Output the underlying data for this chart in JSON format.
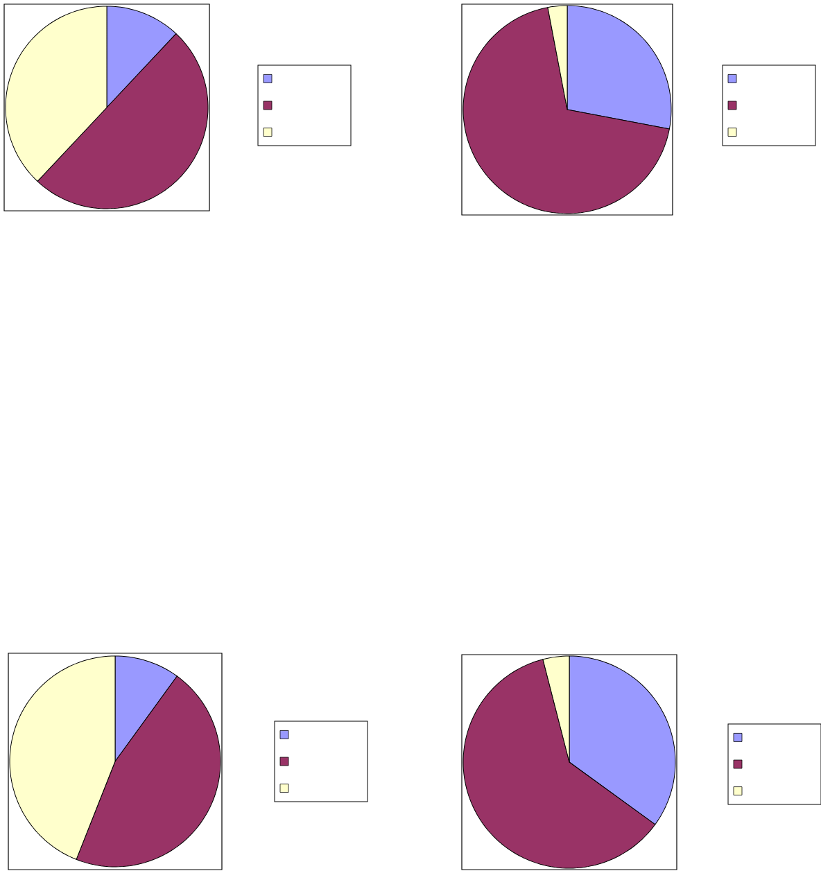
{
  "chart_data": [
    {
      "type": "pie",
      "categories": [
        null,
        null,
        null
      ],
      "values": [
        12,
        50,
        38
      ],
      "colors": [
        "#9999ff",
        "#993366",
        "#ffffcc"
      ]
    },
    {
      "type": "pie",
      "categories": [
        null,
        null,
        null
      ],
      "values": [
        28,
        69,
        3
      ],
      "colors": [
        "#9999ff",
        "#993366",
        "#ffffcc"
      ]
    },
    {
      "type": "pie",
      "categories": [
        null,
        null,
        null
      ],
      "values": [
        10,
        46,
        44
      ],
      "colors": [
        "#9999ff",
        "#993366",
        "#ffffcc"
      ]
    },
    {
      "type": "pie",
      "categories": [
        null,
        null,
        null
      ],
      "values": [
        35,
        61,
        4
      ],
      "colors": [
        "#9999ff",
        "#993366",
        "#ffffcc"
      ]
    }
  ]
}
